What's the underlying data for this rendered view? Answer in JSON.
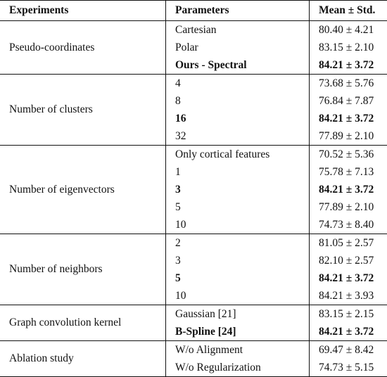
{
  "header": {
    "experiments": "Experiments",
    "parameters": "Parameters",
    "mean_std": "Mean ± Std."
  },
  "groups": [
    {
      "name": "Pseudo-coordinates",
      "rows": [
        {
          "param": "Cartesian",
          "value": "80.40 ± 4.21",
          "bold": false
        },
        {
          "param": "Polar",
          "value": "83.15 ± 2.10",
          "bold": false
        },
        {
          "param": "Ours - Spectral",
          "value": "84.21 ± 3.72",
          "bold": true
        }
      ]
    },
    {
      "name": "Number of clusters",
      "rows": [
        {
          "param": "4",
          "value": "73.68 ± 5.76",
          "bold": false
        },
        {
          "param": "8",
          "value": "76.84 ± 7.87",
          "bold": false
        },
        {
          "param": "16",
          "value": "84.21 ± 3.72",
          "bold": true
        },
        {
          "param": "32",
          "value": "77.89 ± 2.10",
          "bold": false
        }
      ]
    },
    {
      "name": "Number of eigenvectors",
      "rows": [
        {
          "param": "Only cortical features",
          "value": "70.52 ± 5.36",
          "bold": false
        },
        {
          "param": "1",
          "value": "75.78 ± 7.13",
          "bold": false
        },
        {
          "param": "3",
          "value": "84.21 ± 3.72",
          "bold": true
        },
        {
          "param": "5",
          "value": "77.89 ± 2.10",
          "bold": false
        },
        {
          "param": "10",
          "value": "74.73 ± 8.40",
          "bold": false
        }
      ]
    },
    {
      "name": "Number of neighbors",
      "rows": [
        {
          "param": "2",
          "value": "81.05 ± 2.57",
          "bold": false
        },
        {
          "param": "3",
          "value": "82.10 ± 2.57",
          "bold": false
        },
        {
          "param": "5",
          "value": "84.21 ± 3.72",
          "bold": true
        },
        {
          "param": "10",
          "value": "84.21 ± 3.93",
          "bold": false
        }
      ]
    },
    {
      "name": "Graph convolution kernel",
      "rows": [
        {
          "param": "Gaussian [21]",
          "value": "83.15 ± 2.15",
          "bold": false
        },
        {
          "param": "B-Spline [24]",
          "value": "84.21 ± 3.72",
          "bold": true
        }
      ]
    },
    {
      "name": "Ablation study",
      "rows": [
        {
          "param": "W/o Alignment",
          "value": "69.47 ± 8.42",
          "bold": false
        },
        {
          "param": "W/o Regularization",
          "value": "74.73 ± 5.15",
          "bold": false
        }
      ]
    }
  ]
}
